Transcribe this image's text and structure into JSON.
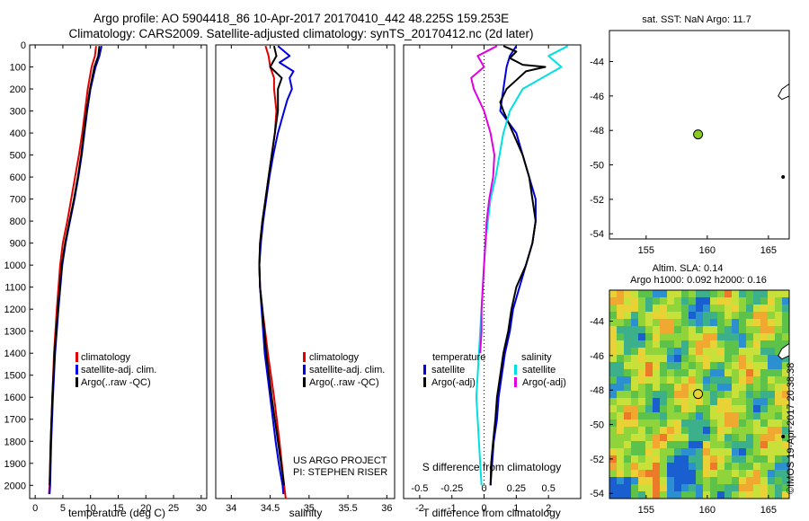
{
  "header": {
    "line1": "Argo profile: AO 5904418_86 10-Apr-2017 20170410_442 48.225S 159.253E",
    "line2": "Climatology: CARS2009. Satellite-adjusted climatology: synTS_20170412.nc (2d later)"
  },
  "colors": {
    "climatology": "#e00000",
    "satellite": "#0000e0",
    "argo": "#000000",
    "satellite_sal": "#00e0e0",
    "argo_sal": "#e000e0",
    "marker": "#88cc22"
  },
  "chart_data": [
    {
      "type": "line",
      "id": "temperature",
      "xlabel": "temperature (deg C)",
      "ylabel": "",
      "xlim": [
        -1,
        31
      ],
      "ylim": [
        0,
        2060
      ],
      "y_inverted": true,
      "x_ticks": [
        0,
        5,
        10,
        15,
        20,
        25,
        30
      ],
      "y_ticks": [
        0,
        100,
        200,
        300,
        400,
        500,
        600,
        700,
        800,
        900,
        1000,
        1100,
        1200,
        1300,
        1400,
        1500,
        1600,
        1700,
        1800,
        1900,
        2000
      ],
      "legend": [
        "climatology",
        "satellite-adj. clim.",
        "Argo(..raw -QC)"
      ],
      "series": [
        {
          "name": "climatology",
          "color_key": "climatology",
          "depth": [
            5,
            50,
            100,
            200,
            300,
            400,
            500,
            600,
            700,
            800,
            900,
            1000,
            1200,
            1400,
            1600,
            1800,
            2000,
            2040
          ],
          "values": [
            11.0,
            10.8,
            10.2,
            9.5,
            9.0,
            8.5,
            7.9,
            7.2,
            6.5,
            5.8,
            5.0,
            4.5,
            3.9,
            3.4,
            3.1,
            2.8,
            2.6,
            2.5
          ]
        },
        {
          "name": "satellite-adj. clim.",
          "color_key": "satellite",
          "depth": [
            5,
            50,
            100,
            200,
            300,
            400,
            500,
            600,
            700,
            800,
            900,
            1000,
            1200,
            1400,
            1600,
            1800,
            2000,
            2040
          ],
          "values": [
            12.0,
            11.6,
            10.9,
            10.0,
            9.4,
            8.9,
            8.4,
            7.8,
            7.1,
            6.3,
            5.5,
            4.9,
            4.2,
            3.6,
            3.2,
            2.9,
            2.7,
            2.6
          ]
        },
        {
          "name": "Argo(..raw -QC)",
          "color_key": "argo",
          "depth": [
            5,
            50,
            100,
            200,
            300,
            400,
            500,
            600,
            700,
            800,
            900,
            1000,
            1200,
            1400,
            1600,
            1800,
            2000
          ],
          "values": [
            11.6,
            11.4,
            10.7,
            9.9,
            9.3,
            8.8,
            8.3,
            7.7,
            7.0,
            6.2,
            5.4,
            4.8,
            4.1,
            3.5,
            3.1,
            2.8,
            2.6
          ]
        }
      ]
    },
    {
      "type": "line",
      "id": "salinity",
      "xlabel": "salinity",
      "ylabel": "",
      "xlim": [
        33.8,
        36.1
      ],
      "ylim": [
        0,
        2060
      ],
      "y_inverted": true,
      "x_ticks": [
        34,
        34.5,
        35,
        35.5,
        36
      ],
      "legend": [
        "climatology",
        "satellite-adj. clim.",
        "Argo(..raw -QC)"
      ],
      "annotation": [
        "US ARGO PROJECT",
        "PI: STEPHEN RISER"
      ],
      "series": [
        {
          "name": "climatology",
          "color_key": "climatology",
          "depth": [
            5,
            50,
            100,
            150,
            200,
            300,
            400,
            500,
            600,
            700,
            800,
            900,
            1000,
            1100,
            1200,
            1400,
            1600,
            1800,
            2000,
            2060
          ],
          "values": [
            34.44,
            34.48,
            34.5,
            34.55,
            34.55,
            34.58,
            34.56,
            34.52,
            34.48,
            34.44,
            34.4,
            34.37,
            34.36,
            34.37,
            34.4,
            34.47,
            34.55,
            34.62,
            34.68,
            34.7
          ]
        },
        {
          "name": "satellite-adj. clim.",
          "color_key": "satellite",
          "depth": [
            5,
            50,
            80,
            120,
            150,
            200,
            250,
            300,
            400,
            500,
            600,
            700,
            800,
            900,
            1000,
            1100,
            1200,
            1400,
            1600,
            1800,
            1900,
            2000,
            2040
          ],
          "values": [
            34.6,
            34.75,
            34.62,
            34.8,
            34.75,
            34.78,
            34.72,
            34.68,
            34.6,
            34.54,
            34.49,
            34.45,
            34.41,
            34.38,
            34.36,
            34.37,
            34.39,
            34.43,
            34.5,
            34.57,
            34.61,
            34.66,
            34.67
          ]
        },
        {
          "name": "Argo(..raw -QC)",
          "color_key": "argo",
          "depth": [
            5,
            50,
            100,
            150,
            200,
            300,
            400,
            500,
            600,
            700,
            800,
            900,
            1000,
            1100,
            1200,
            1400,
            1600,
            1800,
            2000
          ],
          "values": [
            34.55,
            34.58,
            34.5,
            34.65,
            34.6,
            34.6,
            34.56,
            34.52,
            34.48,
            34.44,
            34.4,
            34.37,
            34.36,
            34.37,
            34.4,
            34.45,
            34.52,
            34.6,
            34.68
          ]
        }
      ]
    },
    {
      "type": "line",
      "id": "difference",
      "xlabel": "T difference from climatology",
      "xlabel_top": "S difference from climatology",
      "xlim": [
        -2.5,
        3.0
      ],
      "ylim": [
        0,
        2060
      ],
      "y_inverted": true,
      "x_ticks": [
        -2,
        -1,
        0,
        1,
        2
      ],
      "x_ticks_s": [
        -0.5,
        -0.25,
        0,
        0.25,
        0.5
      ],
      "legend_headers": [
        "temperature",
        "salinity"
      ],
      "legend": [
        "satellite",
        "Argo(-adj)",
        "satellite",
        "Argo(-adj)"
      ],
      "series": [
        {
          "name": "satellite",
          "group": "temperature",
          "color_key": "satellite",
          "depth": [
            5,
            50,
            100,
            200,
            300,
            400,
            500,
            600,
            700,
            800,
            900,
            1000,
            1100,
            1200,
            1300,
            1400,
            1500,
            1600,
            1700,
            1800,
            1900,
            2000
          ],
          "values": [
            1.0,
            0.8,
            0.7,
            0.6,
            0.5,
            1.0,
            1.2,
            1.4,
            1.6,
            1.6,
            1.5,
            1.3,
            1.1,
            0.9,
            0.8,
            0.65,
            0.55,
            0.45,
            0.4,
            0.3,
            0.25,
            0.2
          ]
        },
        {
          "name": "Argo(-adj)",
          "group": "temperature",
          "color_key": "argo",
          "depth": [
            5,
            30,
            60,
            90,
            100,
            120,
            160,
            200,
            260,
            300,
            400,
            500,
            600,
            700,
            800,
            900,
            1000,
            1100,
            1200,
            1300,
            1400,
            1500,
            1600,
            1700,
            1800,
            1900,
            2000
          ],
          "values": [
            0.6,
            1.0,
            0.8,
            1.2,
            1.9,
            1.3,
            1.0,
            0.7,
            0.5,
            0.6,
            0.9,
            1.2,
            1.4,
            1.5,
            1.6,
            1.5,
            1.3,
            1.0,
            0.85,
            0.75,
            0.6,
            0.5,
            0.4,
            0.35,
            0.28,
            0.22,
            0.2
          ]
        },
        {
          "name": "satellite",
          "group": "salinity",
          "color_key": "satellite_sal",
          "depth": [
            5,
            50,
            100,
            150,
            200,
            300,
            400,
            500,
            600,
            700,
            800,
            900,
            1000,
            1100,
            1200,
            1300,
            1400,
            1500,
            1600,
            1700,
            1800,
            1900,
            2000
          ],
          "values": [
            0.65,
            0.5,
            0.6,
            0.45,
            0.3,
            0.2,
            0.15,
            0.12,
            0.09,
            0.05,
            0.03,
            0.01,
            0.0,
            -0.01,
            -0.02,
            -0.03,
            -0.04,
            -0.05,
            -0.06,
            -0.05,
            -0.04,
            -0.03,
            -0.02
          ]
        },
        {
          "name": "Argo(-adj)",
          "group": "salinity",
          "color_key": "argo_sal",
          "depth": [
            5,
            50,
            100,
            150,
            200,
            300,
            400,
            500,
            600,
            700,
            800,
            900,
            1000,
            1100,
            1200,
            1300,
            1400
          ],
          "values": [
            0.1,
            -0.05,
            0.0,
            -0.1,
            -0.08,
            0.0,
            0.05,
            0.08,
            0.07,
            0.04,
            0.02,
            0.01,
            0.0,
            -0.01,
            -0.02,
            -0.02,
            -0.03
          ]
        }
      ]
    },
    {
      "type": "scatter",
      "id": "sst_map",
      "title": "sat. SST: NaN Argo: 11.7",
      "xlim": [
        152,
        166.7
      ],
      "ylim": [
        -54.3,
        -42.2
      ],
      "x_ticks": [
        155,
        160,
        165
      ],
      "y_ticks": [
        -44,
        -46,
        -48,
        -50,
        -52,
        -54
      ],
      "points": [
        {
          "x": 159.25,
          "y": -48.23
        }
      ]
    },
    {
      "type": "heatmap",
      "id": "sla_map",
      "title_line1": "Altim. SLA: 0.14",
      "title_line2": "Argo h1000: 0.092 h2000: 0.16",
      "xlim": [
        152,
        166.7
      ],
      "ylim": [
        -54.3,
        -42.2
      ],
      "x_ticks": [
        155,
        160,
        165
      ],
      "y_ticks": [
        -44,
        -46,
        -48,
        -50,
        -52,
        -54
      ],
      "points": [
        {
          "x": 159.25,
          "y": -48.23
        }
      ]
    }
  ],
  "footer": {
    "stamp": "©IMOS 19-Apr-2017 20:38:38"
  }
}
